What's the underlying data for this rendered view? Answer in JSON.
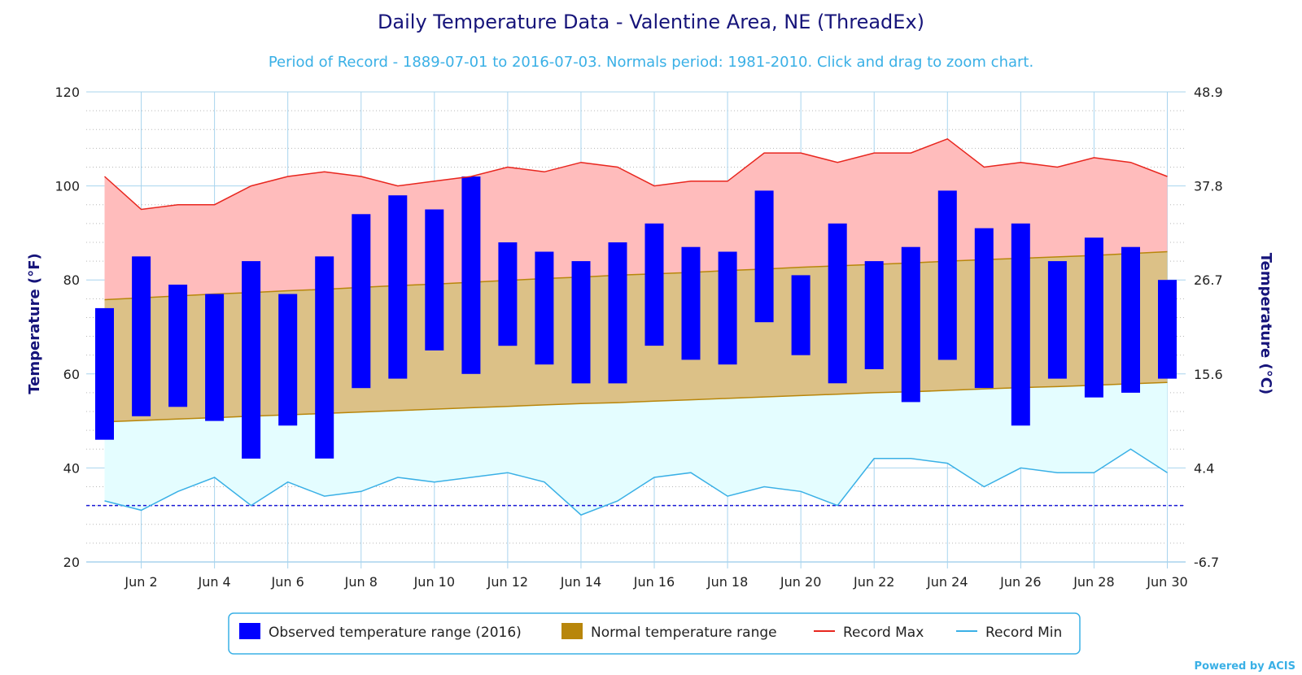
{
  "chart_data": {
    "type": "bar",
    "title": "Daily Temperature Data - Valentine Area, NE (ThreadEx)",
    "subtitle": "Period of Record - 1889-07-01 to 2016-07-03. Normals period: 1981-2010. Click and drag to zoom chart.",
    "ylabel": "Temperature (°F)",
    "ylabel_right": "Temperature (°C)",
    "ylim": [
      20,
      120
    ],
    "yticks": [
      20,
      40,
      60,
      80,
      100,
      120
    ],
    "yticks_right": [
      "-6.7",
      "4.4",
      "15.6",
      "26.7",
      "37.8",
      "48.9"
    ],
    "xlim": [
      0.5,
      30.5
    ],
    "xticks": [
      {
        "day": 2,
        "label": "Jun 2"
      },
      {
        "day": 4,
        "label": "Jun 4"
      },
      {
        "day": 6,
        "label": "Jun 6"
      },
      {
        "day": 8,
        "label": "Jun 8"
      },
      {
        "day": 10,
        "label": "Jun 10"
      },
      {
        "day": 12,
        "label": "Jun 12"
      },
      {
        "day": 14,
        "label": "Jun 14"
      },
      {
        "day": 16,
        "label": "Jun 16"
      },
      {
        "day": 18,
        "label": "Jun 18"
      },
      {
        "day": 20,
        "label": "Jun 20"
      },
      {
        "day": 22,
        "label": "Jun 22"
      },
      {
        "day": 24,
        "label": "Jun 24"
      },
      {
        "day": 26,
        "label": "Jun 26"
      },
      {
        "day": 28,
        "label": "Jun 28"
      },
      {
        "day": 30,
        "label": "Jun 30"
      }
    ],
    "days": [
      1,
      2,
      3,
      4,
      5,
      6,
      7,
      8,
      9,
      10,
      11,
      12,
      13,
      14,
      15,
      16,
      17,
      18,
      19,
      20,
      21,
      22,
      23,
      24,
      25,
      26,
      27,
      28,
      29,
      30
    ],
    "freezing_line": 32,
    "series": [
      {
        "name": "Observed temperature range (2016)",
        "type": "columnrange",
        "color": "#0000ff",
        "low": [
          46,
          51,
          53,
          50,
          42,
          49,
          42,
          57,
          59,
          65,
          60,
          66,
          62,
          58,
          58,
          66,
          63,
          62,
          71,
          64,
          58,
          61,
          54,
          63,
          57,
          49,
          59,
          55,
          56,
          59
        ],
        "high": [
          74,
          85,
          79,
          77,
          84,
          77,
          85,
          94,
          98,
          95,
          102,
          88,
          86,
          84,
          88,
          92,
          87,
          86,
          99,
          81,
          92,
          84,
          87,
          99,
          91,
          92,
          84,
          89,
          87,
          80
        ]
      },
      {
        "name": "Normal temperature range",
        "type": "arearange",
        "color": "#b8860b",
        "low": [
          49.8,
          50.1,
          50.4,
          50.7,
          51.0,
          51.3,
          51.6,
          51.9,
          52.2,
          52.5,
          52.8,
          53.1,
          53.4,
          53.7,
          53.9,
          54.2,
          54.5,
          54.8,
          55.1,
          55.4,
          55.7,
          56.0,
          56.2,
          56.5,
          56.8,
          57.1,
          57.3,
          57.6,
          57.9,
          58.2
        ],
        "high": [
          75.8,
          76.2,
          76.6,
          77.0,
          77.3,
          77.7,
          78.0,
          78.4,
          78.8,
          79.1,
          79.5,
          79.9,
          80.3,
          80.6,
          81.0,
          81.3,
          81.6,
          82.0,
          82.3,
          82.7,
          83.0,
          83.3,
          83.6,
          84.0,
          84.3,
          84.6,
          84.9,
          85.2,
          85.6,
          86.0
        ]
      },
      {
        "name": "Record Max",
        "type": "line",
        "color": "#e8261e",
        "values": [
          102,
          95,
          96,
          96,
          100,
          102,
          103,
          102,
          100,
          101,
          102,
          104,
          103,
          105,
          104,
          100,
          101,
          101,
          107,
          107,
          105,
          107,
          107,
          110,
          104,
          105,
          104,
          106,
          105,
          102
        ]
      },
      {
        "name": "Record Min",
        "type": "line",
        "color": "#3ab0e6",
        "values": [
          33,
          31,
          35,
          38,
          32,
          37,
          34,
          35,
          38,
          37,
          38,
          39,
          37,
          30,
          33,
          38,
          39,
          34,
          36,
          35,
          32,
          42,
          42,
          41,
          36,
          40,
          39,
          39,
          44,
          39
        ]
      }
    ],
    "legend_position": "bottom-center",
    "grid": true
  },
  "credit": "Powered by ACIS"
}
